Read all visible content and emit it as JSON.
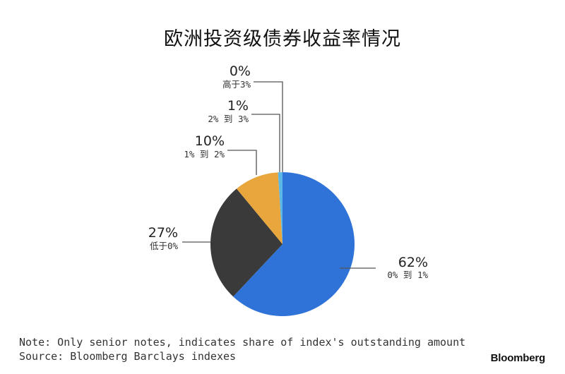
{
  "title": "欧洲投资级债券收益率情况",
  "chart_data": {
    "type": "pie",
    "title": "欧洲投资级债券收益率情况",
    "slices": [
      {
        "label": "0% 到 1%",
        "value_text": "62%",
        "value": 62,
        "color": "#2f73d8"
      },
      {
        "label": "低于0%",
        "value_text": "27%",
        "value": 27,
        "color": "#3a3a3a"
      },
      {
        "label": "1% 到 2%",
        "value_text": "10%",
        "value": 10,
        "color": "#e8a63c"
      },
      {
        "label": "2% 到 3%",
        "value_text": "1%",
        "value": 1,
        "color": "#5bb8e6"
      },
      {
        "label": "高于3%",
        "value_text": "0%",
        "value": 0,
        "color": "#9fd0ef"
      }
    ]
  },
  "footer": {
    "note": "Note: Only senior notes, indicates share of index's outstanding amount",
    "source": "Source: Bloomberg Barclays indexes",
    "brand": "Bloomberg"
  }
}
